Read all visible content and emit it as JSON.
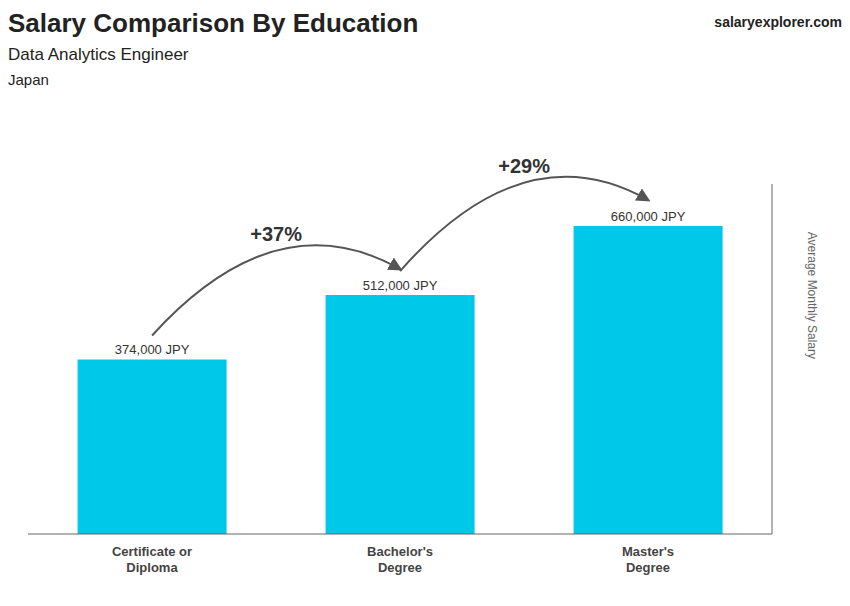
{
  "chart_data": {
    "type": "bar",
    "title": "Salary Comparison By Education",
    "subtitle": "Data Analytics Engineer",
    "ylabel": "Average Monthly Salary",
    "categories": [
      "Certificate or\nDiploma",
      "Bachelor's\nDegree",
      "Master's\nDegree"
    ],
    "values": [
      374000,
      512000,
      660000
    ],
    "value_labels": [
      "374,000 JPY",
      "512,000 JPY",
      "660,000 JPY"
    ],
    "data_labels": true,
    "color": "#00c8e8",
    "ylim": [
      0,
      750000
    ],
    "tick_labels": false,
    "grid": false,
    "annotations": [
      {
        "text": "Japan"
      },
      {
        "text": "salaryexplorer.com"
      },
      {
        "text": "+37%",
        "from": "Certificate or\nDiploma",
        "to": "Bachelor's\nDegree"
      },
      {
        "text": "+29%",
        "from": "Bachelor's\nDegree",
        "to": "Master's\nDegree"
      }
    ]
  }
}
